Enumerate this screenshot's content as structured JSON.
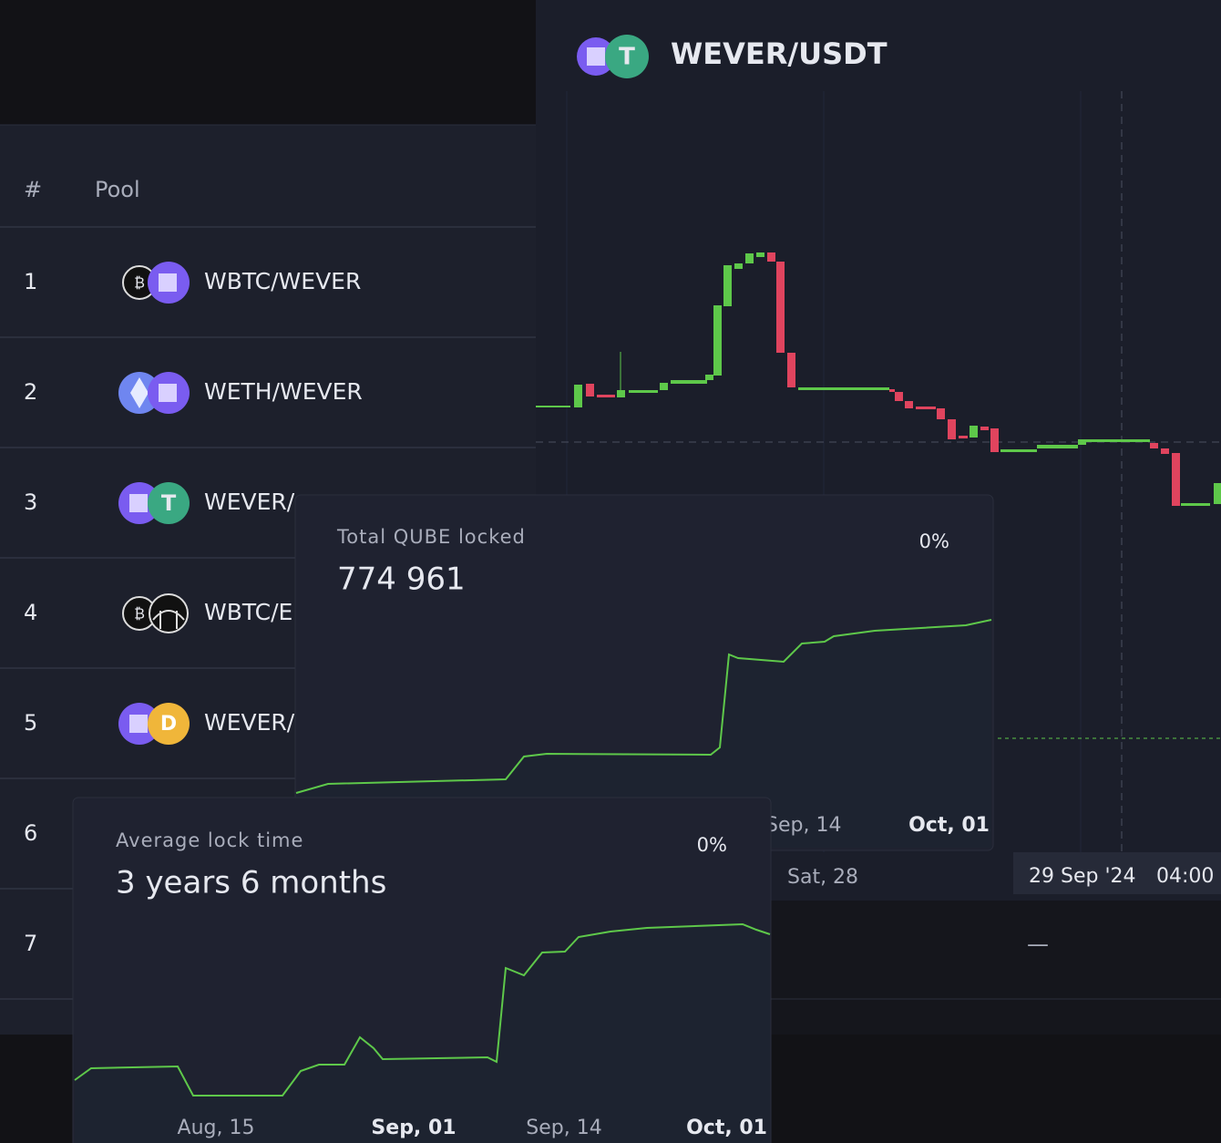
{
  "pair": {
    "title": "WEVER/USDT"
  },
  "table": {
    "header": [
      "#",
      "Pool"
    ],
    "rows": [
      {
        "rank": 1,
        "pool": "WBTC/WEVER"
      },
      {
        "rank": 2,
        "pool": "WETH/WEVER"
      },
      {
        "rank": 3,
        "pool": "WEVER/"
      },
      {
        "rank": 4,
        "pool": "WBTC/E"
      },
      {
        "rank": 5,
        "pool": "WEVER/"
      },
      {
        "rank": 6
      },
      {
        "rank": 7
      }
    ]
  },
  "price_chart": {
    "x_labels": [
      "Sat, 28"
    ],
    "crosshair": {
      "date": "29 Sep '24",
      "time": "04:00"
    }
  },
  "empty_value": "—",
  "cards": [
    {
      "title": "Total QUBE locked",
      "value": "774 961",
      "change": "0%",
      "x_labels": [
        "Sep, 14",
        "Oct, 01"
      ]
    },
    {
      "title": "Average lock time",
      "value": "3 years 6 months",
      "change": "0%",
      "x_labels": [
        "Aug, 15",
        "Sep, 01",
        "Sep, 14",
        "Oct, 01"
      ]
    }
  ]
}
